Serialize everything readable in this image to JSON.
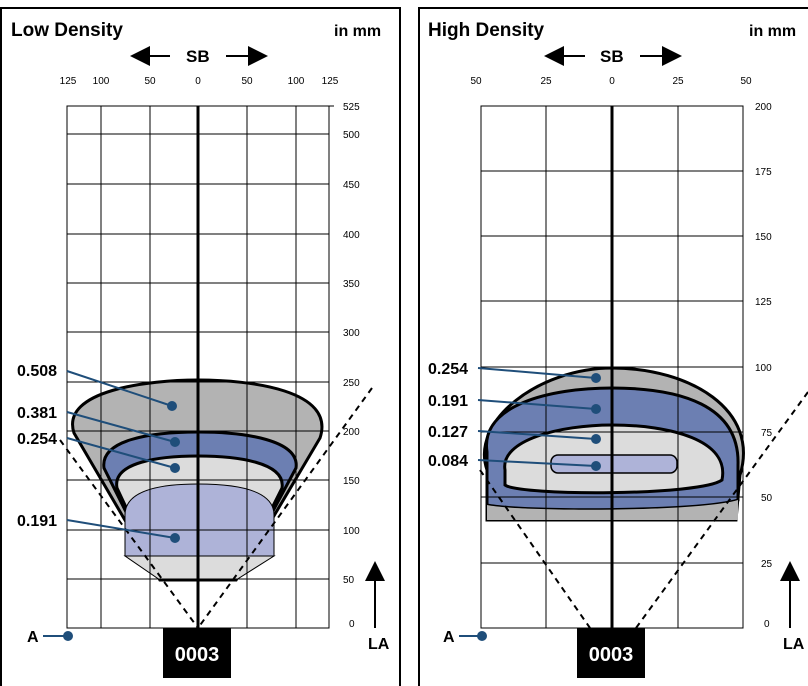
{
  "panels": [
    {
      "title": "Low Density",
      "units": "in mm",
      "axis_label": "SB",
      "x_ticks": [
        "125",
        "100",
        "50",
        "0",
        "50",
        "100",
        "125"
      ],
      "y_ticks": [
        "525",
        "500",
        "450",
        "400",
        "350",
        "300",
        "250",
        "200",
        "150",
        "100",
        "50",
        "0"
      ],
      "zones": [
        {
          "label": "0.508",
          "color": "#b3b3b3"
        },
        {
          "label": "0.381",
          "color": "#6c7fb2"
        },
        {
          "label": "0.254",
          "color": "#dcdcdc"
        },
        {
          "label": "0.191",
          "color": "#aeb3d8"
        }
      ],
      "origin_label": "A",
      "direction_label": "LA",
      "code": "0003"
    },
    {
      "title": "High Density",
      "units": "in mm",
      "axis_label": "SB",
      "x_ticks": [
        "50",
        "25",
        "0",
        "25",
        "50"
      ],
      "y_ticks": [
        "200",
        "175",
        "150",
        "125",
        "100",
        "75",
        "50",
        "25",
        "0"
      ],
      "zones": [
        {
          "label": "0.254",
          "color": "#b3b3b3"
        },
        {
          "label": "0.191",
          "color": "#6c7fb2"
        },
        {
          "label": "0.127",
          "color": "#dcdcdc"
        },
        {
          "label": "0.084",
          "color": "#aeb3d8"
        }
      ],
      "origin_label": "A",
      "direction_label": "LA",
      "code": "0003"
    }
  ],
  "colors": {
    "leader": "#1f4e7a",
    "dot": "#1f4e7a",
    "code_bg": "#000000"
  }
}
